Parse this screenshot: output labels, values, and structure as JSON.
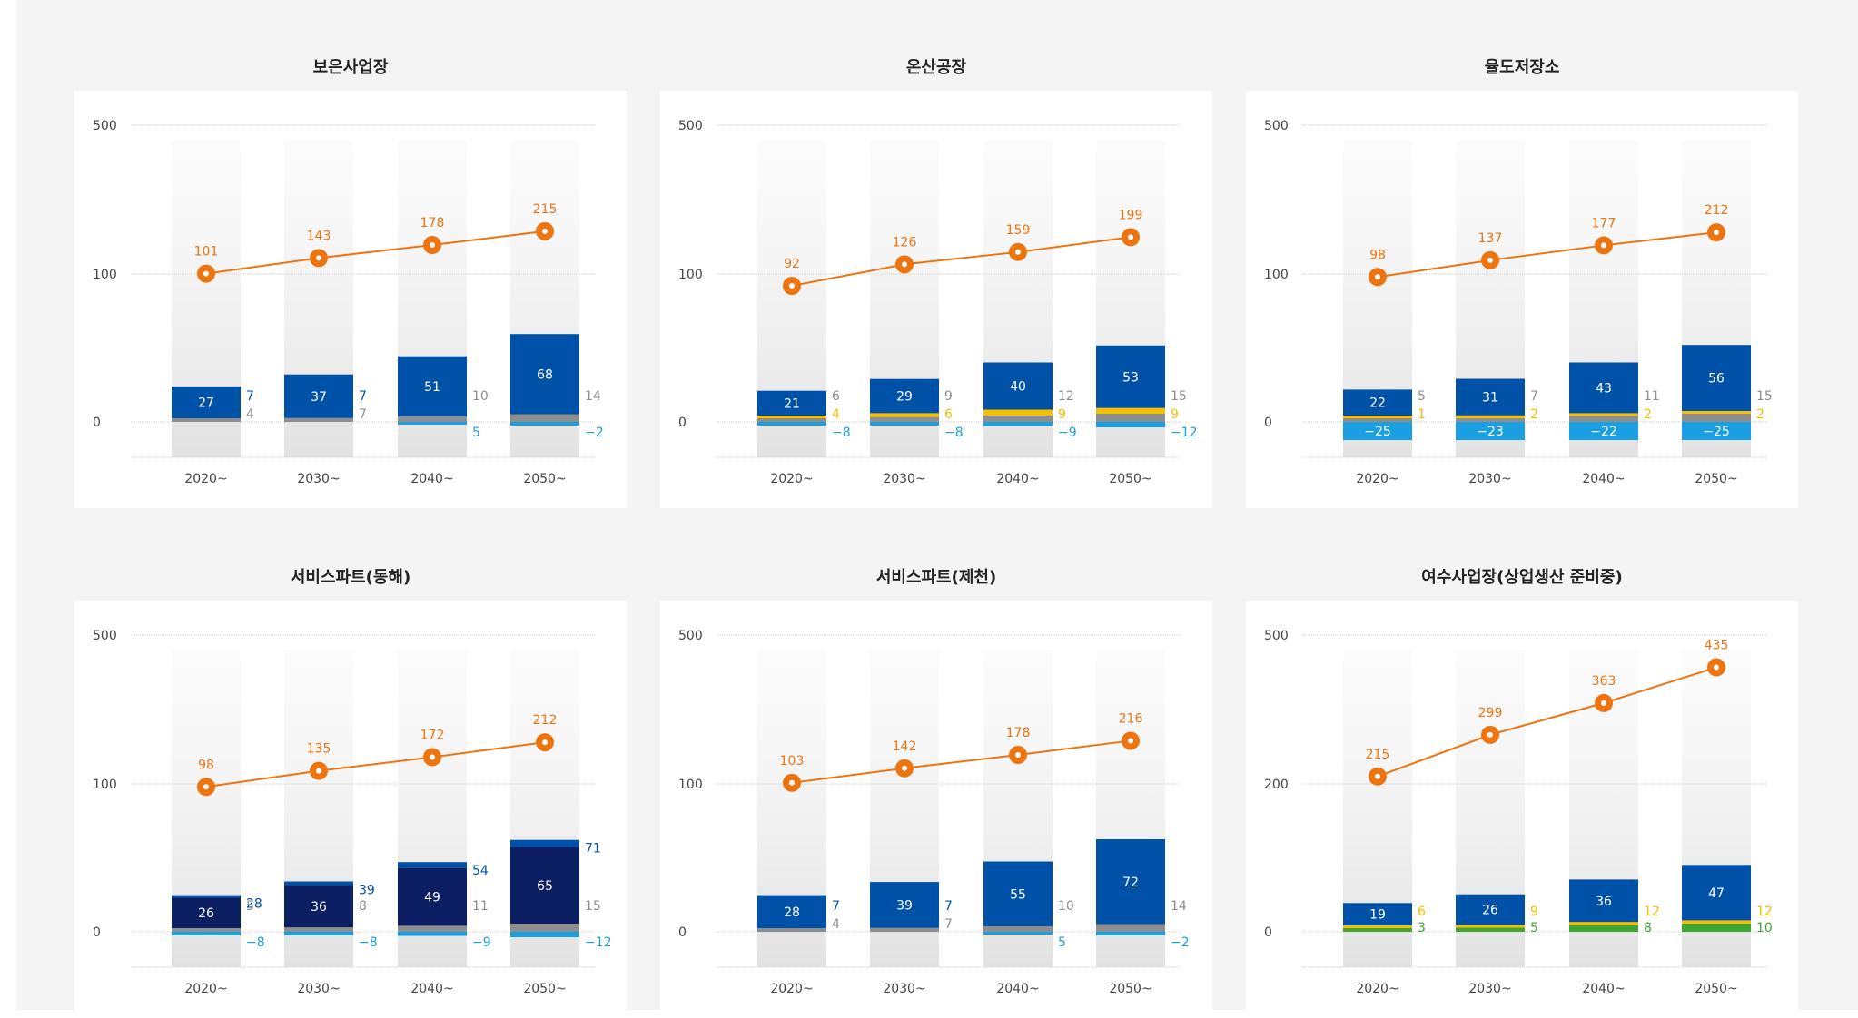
{
  "colors": {
    "line": "#ee7410",
    "blue": "#0052a8",
    "navy": "#0d1f63",
    "cyan": "#1aa0e2",
    "gray": "#8e8e8e",
    "yellow": "#f5c000",
    "green": "#3fa535",
    "tick": "#444444"
  },
  "chart_data": [
    {
      "type": "bar",
      "title": "보은사업장",
      "categories": [
        "2020~",
        "2030~",
        "2040~",
        "2050~"
      ],
      "yticks": [
        "500",
        "100",
        "0"
      ],
      "line": {
        "values": [
          101,
          143,
          178,
          215
        ]
      },
      "series": [
        {
          "key": "main",
          "color": "blue",
          "values": [
            27,
            37,
            51,
            68
          ]
        },
        {
          "key": "top",
          "color": "blue",
          "values": [
            7,
            7,
            null,
            null
          ]
        },
        {
          "key": "gray",
          "color": "gray",
          "values": [
            4,
            7,
            10,
            14
          ]
        },
        {
          "key": "neg",
          "color": "cyan",
          "values": [
            null,
            null,
            5,
            -2
          ]
        }
      ]
    },
    {
      "type": "bar",
      "title": "온산공장",
      "categories": [
        "2020~",
        "2030~",
        "2040~",
        "2050~"
      ],
      "yticks": [
        "500",
        "100",
        "0"
      ],
      "line": {
        "values": [
          92,
          126,
          159,
          199
        ]
      },
      "series": [
        {
          "key": "main",
          "color": "blue",
          "values": [
            21,
            29,
            40,
            53
          ]
        },
        {
          "key": "gray",
          "color": "gray",
          "values": [
            6,
            9,
            12,
            15
          ]
        },
        {
          "key": "yellow",
          "color": "yellow",
          "values": [
            4,
            6,
            9,
            9
          ]
        },
        {
          "key": "neg",
          "color": "cyan",
          "values": [
            -8,
            -8,
            -9,
            -12
          ]
        }
      ]
    },
    {
      "type": "bar",
      "title": "율도저장소",
      "categories": [
        "2020~",
        "2030~",
        "2040~",
        "2050~"
      ],
      "yticks": [
        "500",
        "100",
        "0"
      ],
      "line": {
        "values": [
          98,
          137,
          177,
          212
        ]
      },
      "series": [
        {
          "key": "main",
          "color": "blue",
          "values": [
            22,
            31,
            43,
            56
          ]
        },
        {
          "key": "gray",
          "color": "gray",
          "values": [
            5,
            7,
            11,
            15
          ]
        },
        {
          "key": "yellow",
          "color": "yellow",
          "values": [
            1,
            2,
            2,
            2
          ]
        },
        {
          "key": "negIn",
          "color": "cyan",
          "values": [
            -25,
            -23,
            -22,
            -25
          ]
        }
      ]
    },
    {
      "type": "bar",
      "title": "서비스파트(동해)",
      "categories": [
        "2020~",
        "2030~",
        "2040~",
        "2050~"
      ],
      "yticks": [
        "500",
        "100",
        "0"
      ],
      "line": {
        "values": [
          98,
          135,
          172,
          212
        ]
      },
      "series": [
        {
          "key": "main",
          "color": "navy",
          "values": [
            26,
            36,
            49,
            65
          ]
        },
        {
          "key": "topTall",
          "color": "blue",
          "values": [
            28,
            39,
            54,
            71
          ]
        },
        {
          "key": "gray",
          "color": "gray",
          "values": [
            5,
            8,
            11,
            15
          ]
        },
        {
          "key": "neg",
          "color": "cyan",
          "values": [
            -8,
            -8,
            -9,
            -12
          ]
        }
      ]
    },
    {
      "type": "bar",
      "title": "서비스파트(제천)",
      "categories": [
        "2020~",
        "2030~",
        "2040~",
        "2050~"
      ],
      "yticks": [
        "500",
        "100",
        "0"
      ],
      "line": {
        "values": [
          103,
          142,
          178,
          216
        ]
      },
      "series": [
        {
          "key": "main",
          "color": "blue",
          "values": [
            28,
            39,
            55,
            72
          ]
        },
        {
          "key": "top",
          "color": "blue",
          "values": [
            7,
            7,
            null,
            null
          ]
        },
        {
          "key": "gray",
          "color": "gray",
          "values": [
            4,
            7,
            10,
            14
          ]
        },
        {
          "key": "neg",
          "color": "cyan",
          "values": [
            null,
            null,
            5,
            -2
          ]
        }
      ]
    },
    {
      "type": "bar",
      "title": "여수사업장(상업생산 준비중)",
      "categories": [
        "2020~",
        "2030~",
        "2040~",
        "2050~"
      ],
      "yticks": [
        "500",
        "200",
        "0"
      ],
      "line": {
        "values": [
          215,
          299,
          363,
          435
        ]
      },
      "series": [
        {
          "key": "main",
          "color": "blue",
          "values": [
            19,
            26,
            36,
            47
          ]
        },
        {
          "key": "yellow",
          "color": "yellow",
          "values": [
            6,
            9,
            12,
            12
          ]
        },
        {
          "key": "green",
          "color": "green",
          "values": [
            3,
            5,
            8,
            10
          ]
        }
      ]
    }
  ]
}
